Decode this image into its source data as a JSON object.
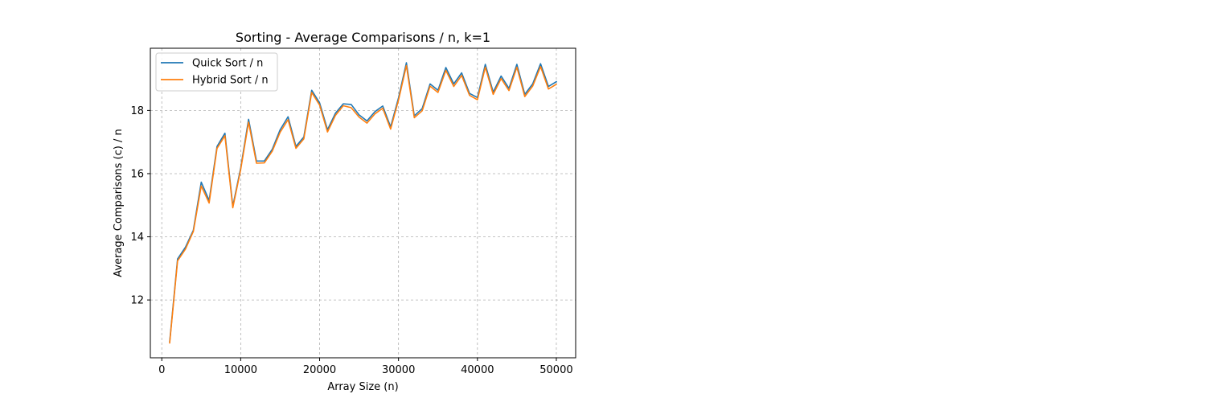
{
  "chart_data": {
    "type": "line",
    "title": "Sorting - Average Comparisons / n, k=1",
    "xlabel": "Array Size (n)",
    "ylabel": "Average Comparisons (c) / n",
    "xlim": [
      -1450,
      52450
    ],
    "ylim": [
      10.17,
      19.97
    ],
    "x_ticks": [
      0,
      10000,
      20000,
      30000,
      40000,
      50000
    ],
    "x_tick_labels": [
      "0",
      "10000",
      "20000",
      "30000",
      "40000",
      "50000"
    ],
    "y_ticks": [
      12,
      14,
      16,
      18
    ],
    "y_tick_labels": [
      "12",
      "14",
      "16",
      "18"
    ],
    "grid": true,
    "legend_position": "top-left",
    "x": [
      1000,
      2000,
      3000,
      4000,
      5000,
      6000,
      7000,
      8000,
      9000,
      10000,
      11000,
      12000,
      13000,
      14000,
      15000,
      16000,
      17000,
      18000,
      19000,
      20000,
      21000,
      22000,
      23000,
      24000,
      25000,
      26000,
      27000,
      28000,
      29000,
      30000,
      31000,
      32000,
      33000,
      34000,
      35000,
      36000,
      37000,
      38000,
      39000,
      40000,
      41000,
      42000,
      43000,
      44000,
      45000,
      46000,
      47000,
      48000,
      49000,
      50000
    ],
    "series": [
      {
        "name": "Quick Sort / n",
        "color": "#1f77b4",
        "values": [
          10.68,
          13.3,
          13.67,
          14.21,
          15.73,
          15.15,
          16.86,
          17.28,
          14.97,
          16.18,
          17.72,
          16.4,
          16.4,
          16.77,
          17.39,
          17.8,
          16.86,
          17.16,
          18.64,
          18.24,
          17.39,
          17.91,
          18.21,
          18.19,
          17.86,
          17.67,
          17.96,
          18.14,
          17.48,
          18.4,
          19.51,
          17.83,
          18.06,
          18.84,
          18.64,
          19.36,
          18.84,
          19.19,
          18.54,
          18.41,
          19.46,
          18.58,
          19.09,
          18.7,
          19.46,
          18.51,
          18.84,
          19.48,
          18.76,
          18.91
        ]
      },
      {
        "name": "Hybrid Sort / n",
        "color": "#ff7f0e",
        "values": [
          10.64,
          13.24,
          13.61,
          14.17,
          15.61,
          15.07,
          16.8,
          17.2,
          14.92,
          16.13,
          17.63,
          16.33,
          16.34,
          16.71,
          17.31,
          17.71,
          16.8,
          17.1,
          18.57,
          18.17,
          17.32,
          17.84,
          18.15,
          18.09,
          17.79,
          17.6,
          17.89,
          18.07,
          17.41,
          18.33,
          19.42,
          17.77,
          17.99,
          18.77,
          18.57,
          19.27,
          18.76,
          19.11,
          18.48,
          18.34,
          19.37,
          18.51,
          19.01,
          18.63,
          19.37,
          18.44,
          18.77,
          19.39,
          18.68,
          18.83
        ]
      }
    ]
  }
}
